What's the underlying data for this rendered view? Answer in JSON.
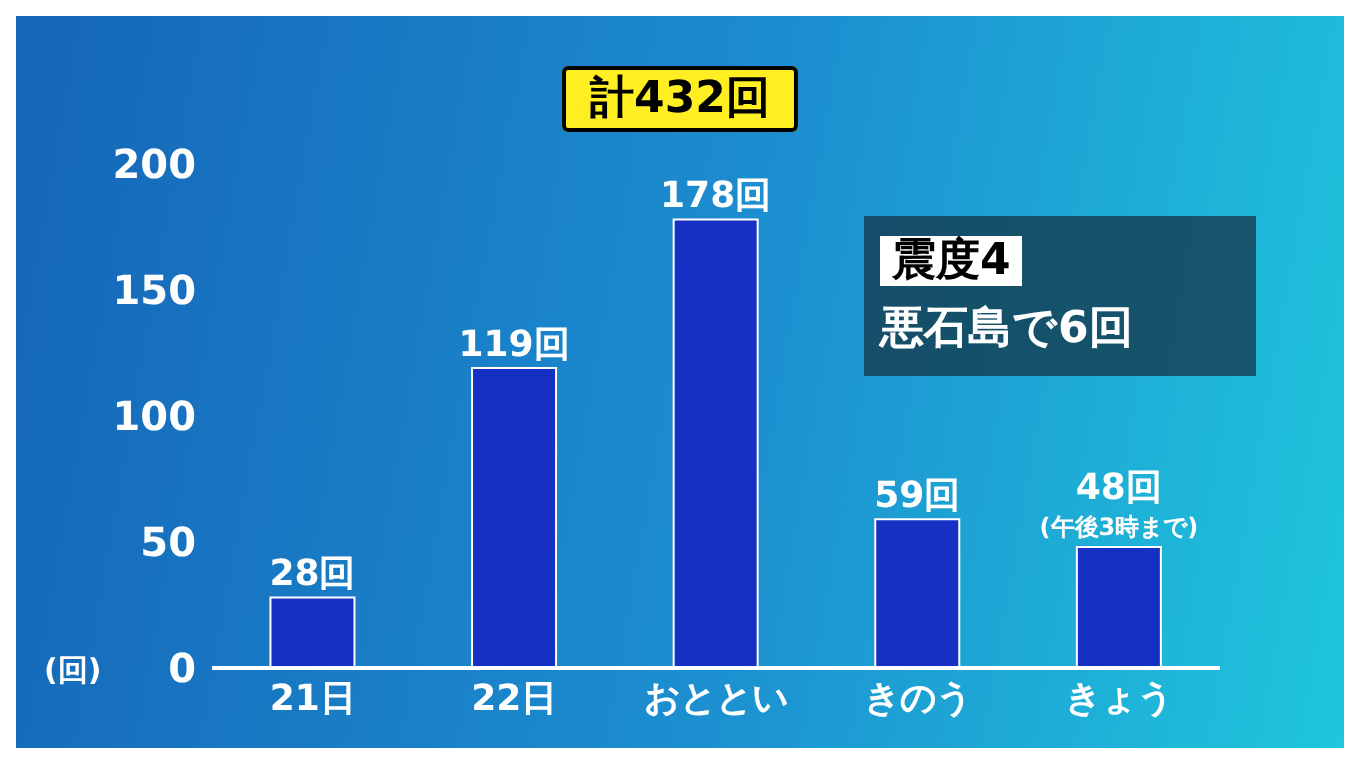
{
  "chart_data": {
    "type": "bar",
    "title": "計432回",
    "ylabel": "(回)",
    "categories": [
      "21日",
      "22日",
      "おととい",
      "きのう",
      "きょう"
    ],
    "values": [
      28,
      119,
      178,
      59,
      48
    ],
    "value_labels": [
      "28回",
      "119回",
      "178回",
      "59回",
      "48回"
    ],
    "color": "#1630c4",
    "ylim": [
      0,
      200
    ],
    "yticks": [
      0,
      50,
      100,
      150,
      200
    ],
    "grid": false,
    "annotations": [
      "震度4",
      "悪石島で6回",
      {
        "text": "(午後3時まで)",
        "x": "きょう",
        "y": 48
      }
    ]
  }
}
